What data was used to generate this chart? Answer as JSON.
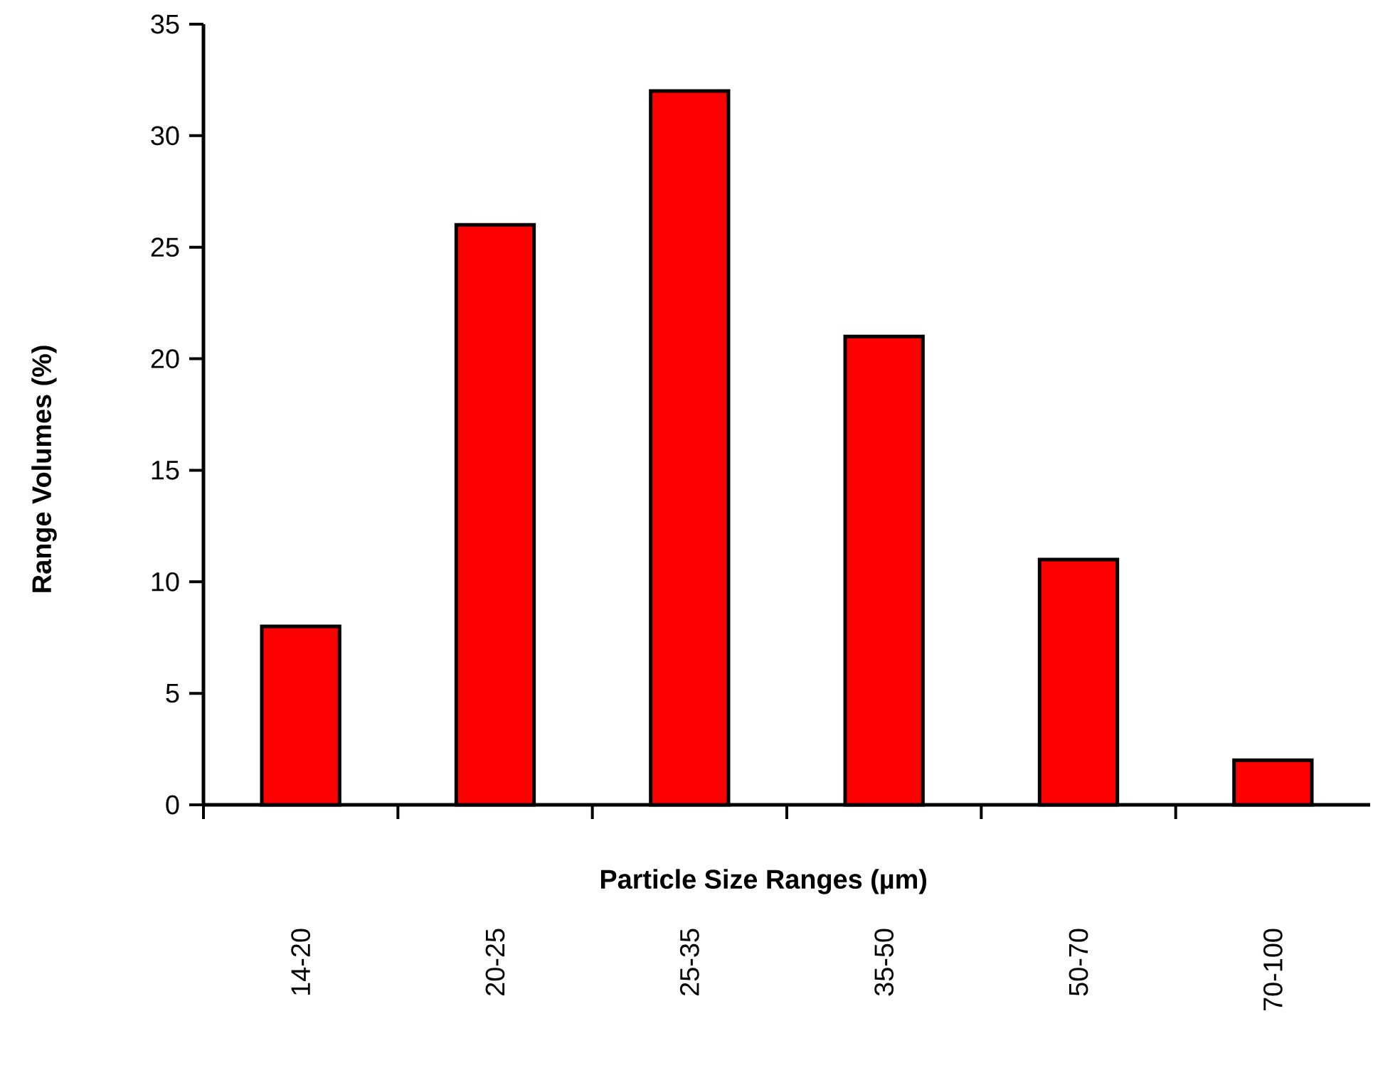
{
  "chart_data": {
    "type": "bar",
    "xlabel": "Particle Size Ranges (µm)",
    "ylabel": "Range Volumes (%)",
    "categories": [
      "14-20",
      "20-25",
      "25-35",
      "35-50",
      "50-70",
      "70-100"
    ],
    "values": [
      8,
      26,
      32,
      21,
      11,
      2
    ],
    "color": "#ff0000",
    "ylim": [
      0,
      35
    ],
    "yticks": [
      0,
      5,
      10,
      15,
      20,
      25,
      30,
      35
    ]
  }
}
